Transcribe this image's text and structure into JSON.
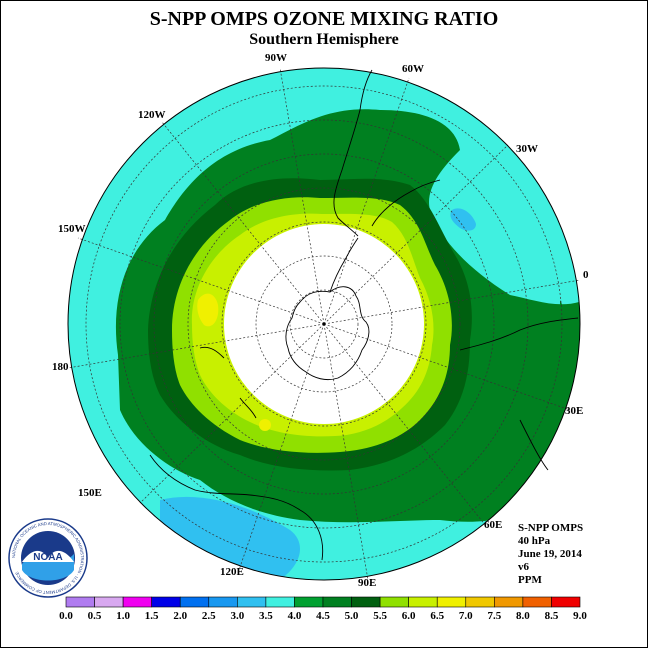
{
  "title": "S-NPP OMPS OZONE MIXING RATIO",
  "subtitle": "Southern Hemisphere",
  "longitude_labels": {
    "lon_90w": "90W",
    "lon_60w": "60W",
    "lon_120w": "120W",
    "lon_30w": "30W",
    "lon_150w": "150W",
    "lon_0": "0",
    "lon_180": "180",
    "lon_30e": "30E",
    "lon_150e": "150E",
    "lon_60e": "60E",
    "lon_120e": "120E",
    "lon_90e": "90E"
  },
  "info": {
    "instrument": "S-NPP OMPS",
    "pressure": "40 hPa",
    "date": "June 19, 2014",
    "version": "v6",
    "units": "PPM"
  },
  "logo": {
    "text": "NOAA",
    "ring_text": "NATIONAL OCEANIC AND ATMOSPHERIC ADMINISTRATION · U.S. DEPARTMENT OF COMMERCE"
  },
  "colorbar": {
    "ticks": [
      "0.0",
      "0.5",
      "1.0",
      "1.5",
      "2.0",
      "2.5",
      "3.0",
      "3.5",
      "4.0",
      "4.5",
      "5.0",
      "5.5",
      "6.0",
      "6.5",
      "7.0",
      "7.5",
      "8.0",
      "8.5",
      "9.0"
    ],
    "colors": [
      "#b07cf0",
      "#d8a8f0",
      "#f000f0",
      "#0000e8",
      "#0070f0",
      "#1898f0",
      "#30c0f0",
      "#40f0e0",
      "#00a030",
      "#008020",
      "#006010",
      "#90e000",
      "#c8f000",
      "#f0f000",
      "#f0c800",
      "#f09800",
      "#f06000",
      "#f00000",
      "#906040"
    ]
  },
  "map_colors": {
    "ocean_outer": "#40f0e0",
    "dark_green": "#008020",
    "darkest_green": "#006010",
    "light_green": "#90e000",
    "yellow_green": "#c8f000",
    "yellow": "#f0f000",
    "blue_patch": "#30c0f0",
    "no_data": "#ffffff"
  }
}
